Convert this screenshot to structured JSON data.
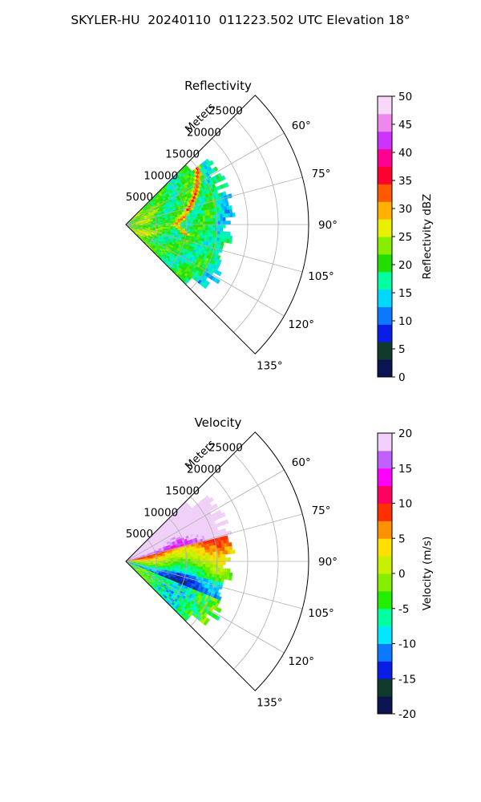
{
  "figure": {
    "title": "SKYLER-HU  20240110  011223.502 UTC Elevation 18°"
  },
  "chart_data": [
    {
      "type": "heatmap",
      "projection": "polar-sector",
      "title": "Reflectivity",
      "radial_label": "Meters",
      "radial_ticks": [
        5000,
        10000,
        15000,
        20000,
        25000
      ],
      "radial_tick_labels": [
        "5000",
        "10000",
        "15000",
        "20000",
        "25000"
      ],
      "rlim": [
        0,
        30000
      ],
      "data_max_range": 18000,
      "azimuth_range_deg": [
        45,
        135
      ],
      "azimuth_ticks": [
        60,
        75,
        90,
        105,
        120,
        135
      ],
      "azimuth_tick_labels": [
        "60°",
        "75°",
        "90°",
        "105°",
        "120°",
        "135°"
      ],
      "grid": true,
      "colorbar": {
        "label": "Reflectivity dBZ",
        "range": [
          0,
          50
        ],
        "ticks": [
          0,
          5,
          10,
          15,
          20,
          25,
          30,
          35,
          40,
          45,
          50
        ],
        "tick_labels": [
          "0",
          "5",
          "10",
          "15",
          "20",
          "25",
          "30",
          "35",
          "40",
          "45",
          "50"
        ],
        "colors": [
          "#0a1450",
          "#0f3a2c",
          "#0a1de6",
          "#0a78ff",
          "#00d8ff",
          "#00ffa0",
          "#22dd00",
          "#88ee00",
          "#e6f000",
          "#ffb000",
          "#ff5a00",
          "#ff0030",
          "#ff0090",
          "#cc33ff",
          "#ee88ee",
          "#f8d8f8"
        ]
      }
    },
    {
      "type": "heatmap",
      "projection": "polar-sector",
      "title": "Velocity",
      "radial_label": "Meters",
      "radial_ticks": [
        5000,
        10000,
        15000,
        20000,
        25000
      ],
      "radial_tick_labels": [
        "5000",
        "10000",
        "15000",
        "20000",
        "25000"
      ],
      "rlim": [
        0,
        30000
      ],
      "data_max_range": 18000,
      "azimuth_range_deg": [
        45,
        135
      ],
      "azimuth_ticks": [
        60,
        75,
        90,
        105,
        120,
        135
      ],
      "azimuth_tick_labels": [
        "60°",
        "75°",
        "90°",
        "105°",
        "120°",
        "135°"
      ],
      "grid": true,
      "colorbar": {
        "label": "Velocity (m/s)",
        "range": [
          -20,
          20
        ],
        "ticks": [
          -20,
          -15,
          -10,
          -5,
          0,
          5,
          10,
          15,
          20
        ],
        "tick_labels": [
          "-20",
          "-15",
          "-10",
          "-5",
          "0",
          "5",
          "10",
          "15",
          "20"
        ],
        "colors": [
          "#0a1450",
          "#0f3a2c",
          "#0a1de6",
          "#0a78ff",
          "#00e8ff",
          "#00ffa0",
          "#22ee00",
          "#88ee00",
          "#c8f000",
          "#ffe000",
          "#ff9000",
          "#ff3000",
          "#ff0060",
          "#ff00ff",
          "#c060ff",
          "#f0d0f8"
        ]
      }
    }
  ]
}
